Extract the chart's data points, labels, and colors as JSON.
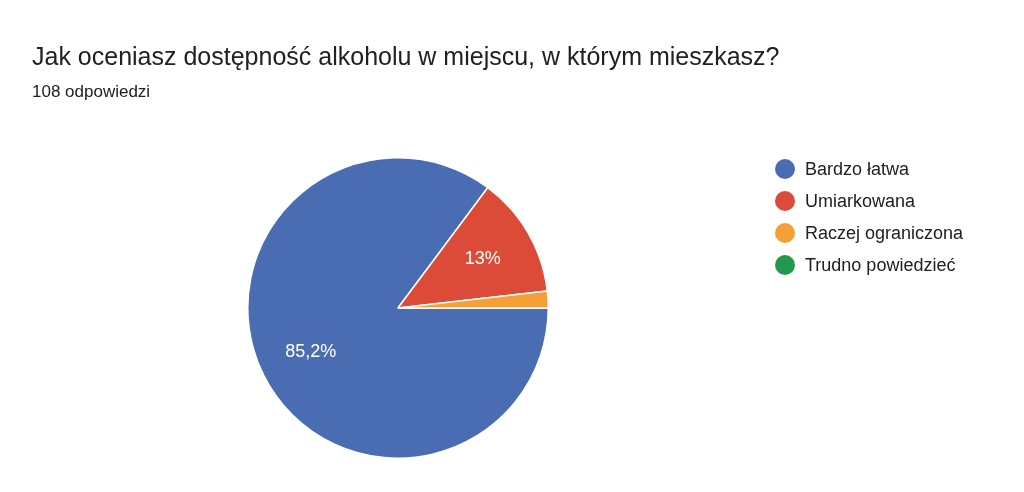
{
  "chart_data": {
    "type": "pie",
    "title": "Jak oceniasz dostępność alkoholu w miejscu, w którym mieszkasz?",
    "subtitle": "108 odpowiedzi",
    "categories": [
      "Bardzo łatwa",
      "Umiarkowana",
      "Raczej ograniczona",
      "Trudno powiedzieć"
    ],
    "values": [
      85.2,
      13,
      1.8,
      0
    ],
    "colors": [
      "#4a6cb3",
      "#dc4a38",
      "#f5a036",
      "#22994f"
    ],
    "value_labels": [
      "85,2%",
      "13%",
      null,
      null
    ],
    "legend": "right"
  }
}
